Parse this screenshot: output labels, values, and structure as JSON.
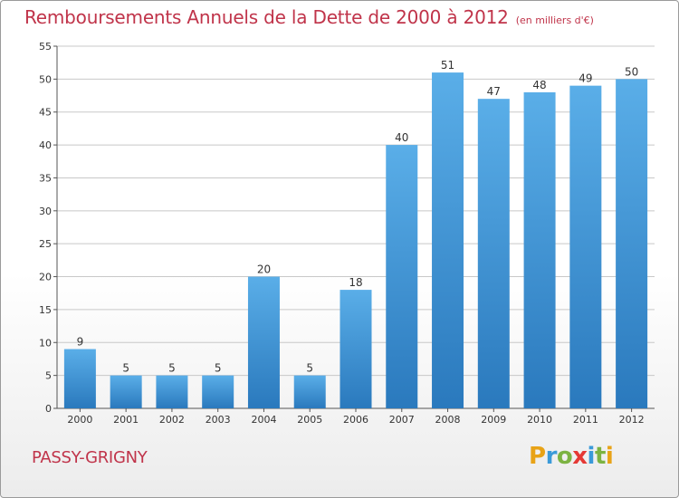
{
  "title": "Remboursements Annuels de la Dette de 2000 à 2012",
  "subtitle": "(en milliers d'€)",
  "commune": "PASSY-GRIGNY",
  "logo": {
    "text": "Proxiti",
    "letters": [
      {
        "ch": "P",
        "color": "#e8a317"
      },
      {
        "ch": "r",
        "color": "#3a9ad9"
      },
      {
        "ch": "o",
        "color": "#7cb342"
      },
      {
        "ch": "x",
        "color": "#e53935"
      },
      {
        "ch": "i",
        "color": "#3a9ad9"
      },
      {
        "ch": "t",
        "color": "#7cb342"
      },
      {
        "ch": "i",
        "color": "#e8a317"
      }
    ]
  },
  "colors": {
    "accent": "#c0344a",
    "bar_top": "#5aaee8",
    "bar_bottom": "#2a79bd",
    "grid": "#c8c8c8",
    "axis": "#555555"
  },
  "chart_data": {
    "type": "bar",
    "categories": [
      "2000",
      "2001",
      "2002",
      "2003",
      "2004",
      "2005",
      "2006",
      "2007",
      "2008",
      "2009",
      "2010",
      "2011",
      "2012"
    ],
    "values": [
      9,
      5,
      5,
      5,
      20,
      5,
      18,
      40,
      51,
      47,
      48,
      49,
      50
    ],
    "ylim": [
      0,
      55
    ],
    "yticks": [
      0,
      5,
      10,
      15,
      20,
      25,
      30,
      35,
      40,
      45,
      50,
      55
    ],
    "grid": true
  }
}
